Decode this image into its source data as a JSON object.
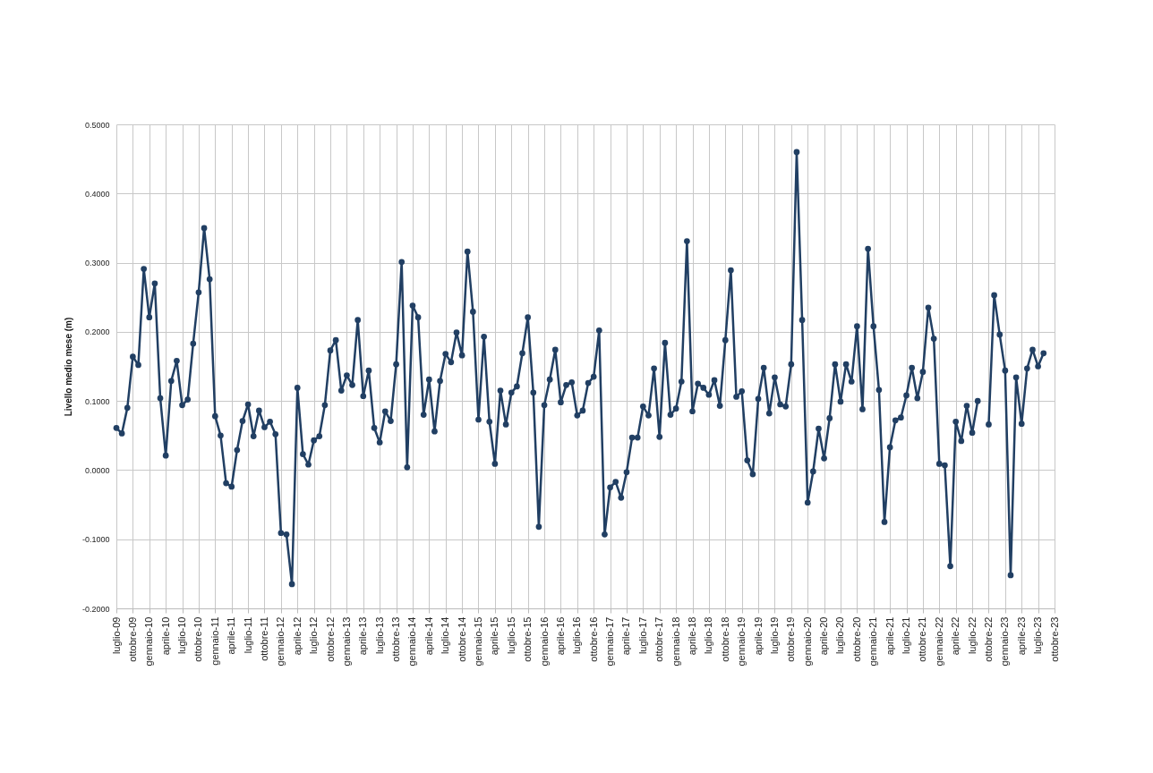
{
  "chart_data": {
    "type": "line",
    "ylabel": "Livello medio mese (m)",
    "categories": [
      "luglio-09",
      null,
      null,
      "ottobre-09",
      null,
      null,
      "gennaio-10",
      null,
      null,
      "aprile-10",
      null,
      null,
      "luglio-10",
      null,
      null,
      "ottobre-10",
      null,
      null,
      "gennaio-11",
      null,
      null,
      "aprile-11",
      null,
      null,
      "luglio-11",
      null,
      null,
      "ottobre-11",
      null,
      null,
      "gennaio-12",
      null,
      null,
      "aprile-12",
      null,
      null,
      "luglio-12",
      null,
      null,
      "ottobre-12",
      null,
      null,
      "gennaio-13",
      null,
      null,
      "aprile-13",
      null,
      null,
      "luglio-13",
      null,
      null,
      "ottobre-13",
      null,
      null,
      "gennaio-14",
      null,
      null,
      "aprile-14",
      null,
      null,
      "luglio-14",
      null,
      null,
      "ottobre-14",
      null,
      null,
      "gennaio-15",
      null,
      null,
      "aprile-15",
      null,
      null,
      "luglio-15",
      null,
      null,
      "ottobre-15",
      null,
      null,
      "gennaio-16",
      null,
      null,
      "aprile-16",
      null,
      null,
      "luglio-16",
      null,
      null,
      "ottobre-16",
      null,
      null,
      "gennaio-17",
      null,
      null,
      "aprile-17",
      null,
      null,
      "luglio-17",
      null,
      null,
      "ottobre-17",
      null,
      null,
      "gennaio-18",
      null,
      null,
      "aprile-18",
      null,
      null,
      "luglio-18",
      null,
      null,
      "ottobre-18",
      null,
      null,
      "gennaio-19",
      null,
      null,
      "aprile-19",
      null,
      null,
      "luglio-19",
      null,
      null,
      "ottobre-19",
      null,
      null,
      "gennaio-20",
      null,
      null,
      "aprile-20",
      null,
      null,
      "luglio-20",
      null,
      null,
      "ottobre-20",
      null,
      null,
      "gennaio-21",
      null,
      null,
      "aprile-21",
      null,
      null,
      "luglio-21",
      null,
      null,
      "ottobre-21",
      null,
      null,
      "gennaio-22",
      null,
      null,
      "aprile-22",
      null,
      null,
      "luglio-22",
      null,
      null,
      "ottobre-22",
      null,
      null,
      "gennaio-23",
      null,
      null,
      "aprile-23",
      null,
      null,
      "luglio-23",
      null,
      null,
      "ottobre-23"
    ],
    "series": [
      {
        "color": "#213f63",
        "values": [
          0.061,
          0.053,
          0.09,
          0.164,
          0.152,
          0.291,
          0.221,
          0.27,
          0.104,
          0.021,
          0.129,
          0.158,
          0.094,
          0.102,
          0.183,
          0.257,
          0.35,
          0.276,
          0.078,
          0.05,
          -0.019,
          -0.024,
          0.029,
          0.071,
          0.095,
          0.049,
          0.086,
          0.062,
          0.07,
          0.052,
          -0.091,
          -0.093,
          -0.165,
          0.119,
          0.023,
          0.008,
          0.043,
          0.049,
          0.094,
          0.173,
          0.188,
          0.115,
          0.137,
          0.123,
          0.217,
          0.107,
          0.144,
          0.061,
          0.04,
          0.085,
          0.071,
          0.153,
          0.301,
          0.004,
          0.238,
          0.221,
          0.08,
          0.131,
          0.056,
          0.129,
          0.168,
          0.156,
          0.199,
          0.166,
          0.316,
          0.229,
          0.073,
          0.193,
          0.07,
          0.009,
          0.115,
          0.066,
          0.112,
          0.121,
          0.169,
          0.221,
          0.112,
          -0.082,
          0.094,
          0.131,
          0.174,
          0.098,
          0.123,
          0.127,
          0.079,
          0.086,
          0.126,
          0.135,
          0.202,
          -0.093,
          -0.025,
          -0.017,
          -0.04,
          -0.003,
          0.047,
          0.047,
          0.092,
          0.079,
          0.147,
          0.048,
          0.184,
          0.08,
          0.089,
          0.128,
          0.331,
          0.085,
          0.125,
          0.119,
          0.109,
          0.13,
          0.093,
          0.188,
          0.289,
          0.106,
          0.114,
          0.014,
          -0.006,
          0.103,
          0.148,
          0.082,
          0.134,
          0.095,
          0.092,
          0.153,
          0.46,
          0.217,
          -0.047,
          -0.002,
          0.06,
          0.017,
          0.075,
          0.153,
          0.099,
          0.153,
          0.128,
          0.208,
          0.088,
          0.32,
          0.208,
          0.116,
          -0.075,
          0.033,
          0.072,
          0.076,
          0.108,
          0.148,
          0.104,
          0.142,
          0.235,
          0.19,
          0.009,
          0.007,
          -0.139,
          0.07,
          0.042,
          0.093,
          0.054,
          0.1,
          null,
          0.066,
          0.253,
          0.196,
          0.144,
          -0.152,
          0.134,
          0.067,
          0.147,
          0.174,
          0.15,
          0.169,
          null,
          null
        ]
      }
    ],
    "ylim": [
      -0.2,
      0.5
    ],
    "yticks": [
      {
        "value": -0.2,
        "label": "-0.2000"
      },
      {
        "value": -0.1,
        "label": "-0.1000"
      },
      {
        "value": 0,
        "label": "0.0000"
      },
      {
        "value": 0.1,
        "label": "0.1000"
      },
      {
        "value": 0.2,
        "label": "0.2000"
      },
      {
        "value": 0.3,
        "label": "0.3000"
      },
      {
        "value": 0.4,
        "label": "0.4000"
      },
      {
        "value": 0.5,
        "label": "0.5000"
      }
    ],
    "grid": true,
    "marker": "circle",
    "line_style": "solid"
  }
}
